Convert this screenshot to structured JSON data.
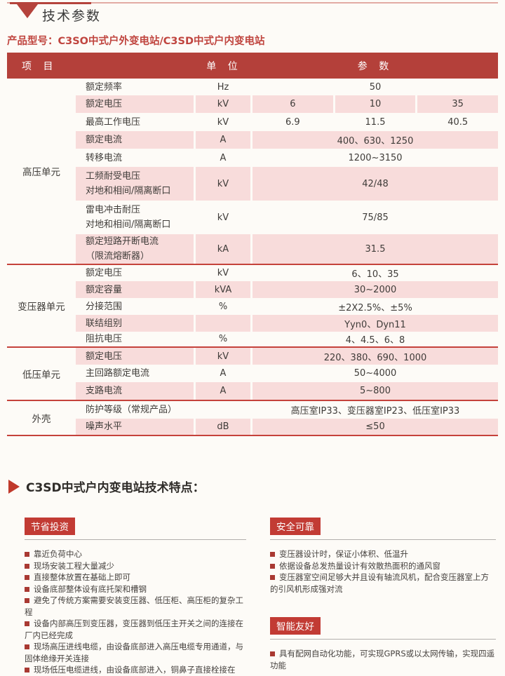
{
  "header": {
    "title": "技术参数",
    "product_model": "产品型号：C3SO中式户外变电站/C3SD中式户内变电站"
  },
  "table": {
    "columns": [
      "项 目",
      "单 位",
      "参 数"
    ],
    "groups": [
      {
        "category": "高压单元",
        "rows": [
          {
            "item": [
              "额定频率"
            ],
            "unit": "Hz",
            "params": [
              "50"
            ],
            "pink": false,
            "height": 24
          },
          {
            "item": [
              "额定电压"
            ],
            "unit": "kV",
            "params": [
              "6",
              "10",
              "35"
            ],
            "pink": true,
            "height": 25
          },
          {
            "item": [
              "最高工作电压"
            ],
            "unit": "kV",
            "params": [
              "6.9",
              "11.5",
              "40.5"
            ],
            "pink": false,
            "height": 26
          },
          {
            "item": [
              "额定电流"
            ],
            "unit": "A",
            "params": [
              "400、630、1250"
            ],
            "pink": true,
            "height": 25
          },
          {
            "item": [
              "转移电流"
            ],
            "unit": "A",
            "params": [
              "1200~3150"
            ],
            "pink": false,
            "height": 26
          },
          {
            "item": [
              "工频耐受电压",
              "对地和相间/隔离断口"
            ],
            "unit": "kV",
            "params": [
              "42/48"
            ],
            "pink": true,
            "height": 48
          },
          {
            "item": [
              "雷电冲击耐压",
              "对地和相间/隔离断口"
            ],
            "unit": "kV",
            "params": [
              "75/85"
            ],
            "pink": false,
            "height": 48
          },
          {
            "item": [
              "额定短路开断电流",
              "（限流熔断器）"
            ],
            "unit": "kA",
            "params": [
              "31.5"
            ],
            "pink": true,
            "height": 42
          }
        ]
      },
      {
        "category": "变压器单元",
        "rows": [
          {
            "item": [
              "额定电压"
            ],
            "unit": "kV",
            "params": [
              "6、10、35"
            ],
            "pink": false,
            "height": 23
          },
          {
            "item": [
              "额定容量"
            ],
            "unit": "kVA",
            "params": [
              "30~2000"
            ],
            "pink": true,
            "height": 24
          },
          {
            "item": [
              "分接范围"
            ],
            "unit": "%",
            "params": [
              "±2X2.5%、±5%"
            ],
            "pink": false,
            "height": 24
          },
          {
            "item": [
              "联结组别"
            ],
            "unit": "",
            "params": [
              "Yyn0、Dyn11"
            ],
            "pink": true,
            "height": 24
          },
          {
            "item": [
              "阻抗电压"
            ],
            "unit": "%",
            "params": [
              "4、4.5、6、8"
            ],
            "pink": false,
            "height": 21
          }
        ]
      },
      {
        "category": "低压单元",
        "rows": [
          {
            "item": [
              "额定电压"
            ],
            "unit": "kV",
            "params": [
              "220、380、690、1000"
            ],
            "pink": true,
            "height": 24
          },
          {
            "item": [
              "主回路额定电流"
            ],
            "unit": "A",
            "params": [
              "50~4000"
            ],
            "pink": false,
            "height": 25
          },
          {
            "item": [
              "支路电流"
            ],
            "unit": "A",
            "params": [
              "5~800"
            ],
            "pink": true,
            "height": 25
          }
        ]
      },
      {
        "category": "外壳",
        "rows": [
          {
            "item": [
              "防护等级（常规产品）"
            ],
            "unit": "",
            "params": [
              "高压室IP33、变压器室IP23、低压室IP33"
            ],
            "pink": false,
            "height": 25
          },
          {
            "item": [
              "噪声水平"
            ],
            "unit": "dB",
            "params": [
              "≤50"
            ],
            "pink": true,
            "height": 23
          }
        ]
      }
    ]
  },
  "features": {
    "heading": "C3SD中式户内变电站技术特点：",
    "left_sections": [
      {
        "badge": "节省投资",
        "bullets": [
          "靠近负荷中心",
          "现场安装工程大量减少",
          "直接整体放置在基础上即可",
          "设备底部整体设有底托架和槽钢",
          "避免了传统方案需要安装变压器、低压柜、高压柜的复杂工程",
          "设备内部高压到变压器，变压器到低压主开关之间的连接在厂内已经完成",
          "现场高压进线电缆，由设备底部进入高压电缆专用通道，与固体绝缘开关连接",
          "现场低压电缆进线，由设备底部进入，铜鼻子直接栓接在"
        ]
      }
    ],
    "right_sections": [
      {
        "badge": "安全可靠",
        "bullets": [
          "变压器设计时，保证小体积、低温升",
          "依据设备总发热量设计有效散热面积的通风窗",
          "变压器室空间足够大并且设有轴流风机，配合变压器室上方的引风机形成强对流"
        ]
      },
      {
        "badge": "智能友好",
        "bullets": [
          "具有配网自动化功能，可实现GPRS或以太网传输，实现四遥功能"
        ]
      }
    ]
  },
  "colors": {
    "header_red": "#b4403a",
    "row_pink": "#f8dcdb",
    "divider_red": "#c5423b",
    "accent_red": "#c23b34",
    "product_red": "#c0453f",
    "bullet_red": "#a93932",
    "rule_light": "#e2aba4",
    "underline_gray": "#b2afac",
    "page_bg": "#fdfbf7",
    "text": "#3f3c39"
  }
}
